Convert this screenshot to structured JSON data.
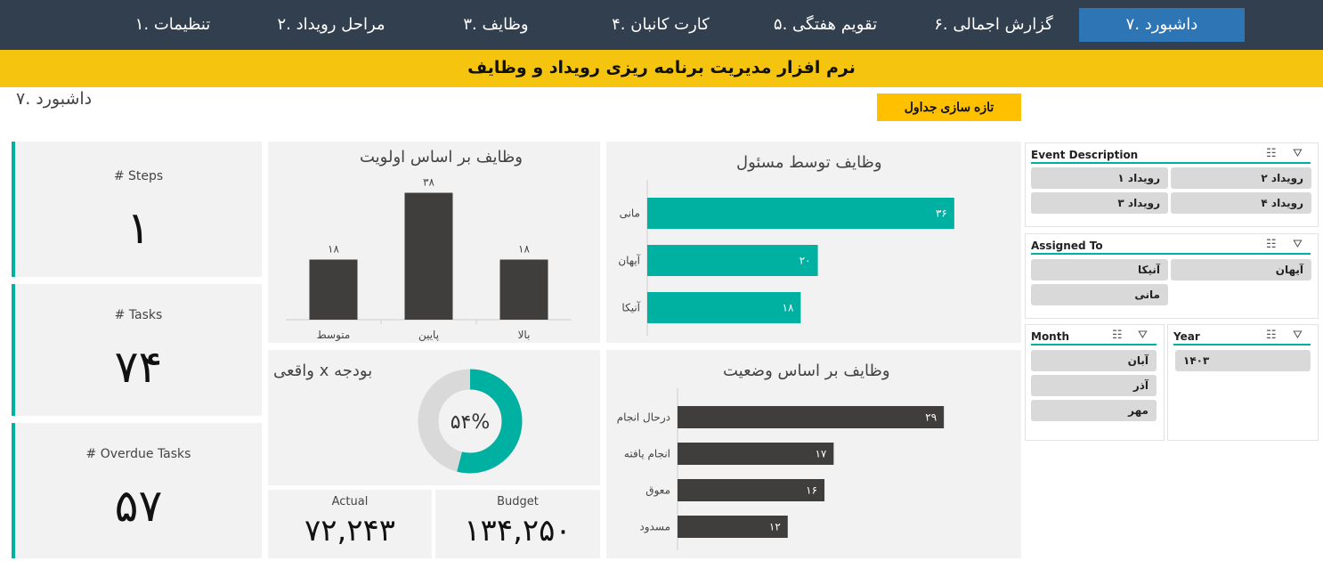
{
  "nav": {
    "items": [
      "تنظیمات .۱",
      "مراحل رویداد .۲",
      "وظایف .۳",
      "کارت کانبان .۴",
      "تقویم هفتگی .۵",
      "گزارش اجمالی .۶",
      "داشبورد .۷"
    ],
    "active_index": 6
  },
  "banner": {
    "title": "نرم افزار مدیریت برنامه ریزی رویداد و وظایف"
  },
  "page": {
    "title": "داشبورد .۷",
    "refresh_label": "تازه سازی جداول"
  },
  "kpis": [
    {
      "label": "# Steps",
      "value": "۱"
    },
    {
      "label": "# Tasks",
      "value": "۷۴"
    },
    {
      "label": "# Overdue Tasks",
      "value": "۵۷"
    }
  ],
  "budget": {
    "title": "بودجه  x  واقعی",
    "percent_label": "۵۴%",
    "actual_label": "Actual",
    "actual_value": "۷۲,۲۴۳",
    "budget_label": "Budget",
    "budget_value": "۱۳۴,۲۵۰"
  },
  "chart_data": [
    {
      "type": "bar",
      "title": "وظایف بر اساس اولویت",
      "categories": [
        "متوسط",
        "پایین",
        "بالا"
      ],
      "values": [
        18,
        38,
        18
      ],
      "value_labels": [
        "۱۸",
        "۳۸",
        "۱۸"
      ],
      "color": "#403e3c",
      "ylim": [
        0,
        40
      ],
      "grid": false
    },
    {
      "type": "bar",
      "orientation": "horizontal",
      "title": "وظایف توسط مسئول",
      "categories": [
        "مانی",
        "آیهان",
        "آنیکا"
      ],
      "values": [
        36,
        20,
        18
      ],
      "value_labels": [
        "۳۶",
        "۲۰",
        "۱۸"
      ],
      "color": "#00b0a0",
      "xlim": [
        0,
        38
      ],
      "grid": false
    },
    {
      "type": "pie",
      "title": "بودجه  x  واقعی",
      "values": [
        54,
        46
      ],
      "colors": [
        "#00b0a0",
        "#d9d9d9"
      ],
      "center_label": "۵۴%"
    },
    {
      "type": "bar",
      "orientation": "horizontal",
      "title": "وظایف بر اساس وضعیت",
      "categories": [
        "درحال انجام",
        "انجام یافته",
        "معوق",
        "مسدود"
      ],
      "values": [
        29,
        17,
        16,
        12
      ],
      "value_labels": [
        "۲۹",
        "۱۷",
        "۱۶",
        "۱۲"
      ],
      "color": "#403e3c",
      "xlim": [
        0,
        38
      ],
      "grid": false
    }
  ],
  "slicers": {
    "event": {
      "header": "Event Description",
      "items": [
        "رویداد ۲",
        "رویداد ۱",
        "رویداد ۴",
        "رویداد ۳"
      ]
    },
    "assigned": {
      "header": "Assigned To",
      "items": [
        "آیهان",
        "آنیکا",
        "مانی"
      ]
    },
    "month": {
      "header": "Month",
      "items": [
        "آبان",
        "آذر",
        "مهر"
      ]
    },
    "year": {
      "header": "Year",
      "items": [
        "۱۴۰۳"
      ]
    }
  },
  "icons": {
    "multi_select": "multi-select-icon",
    "clear_filter": "clear-filter-icon"
  },
  "colors": {
    "nav_bg": "#323f4f",
    "nav_active": "#2e75b6",
    "banner": "#f5c40f",
    "button": "#ffc000",
    "teal": "#00b0a0",
    "dark_bar": "#403e3c"
  }
}
